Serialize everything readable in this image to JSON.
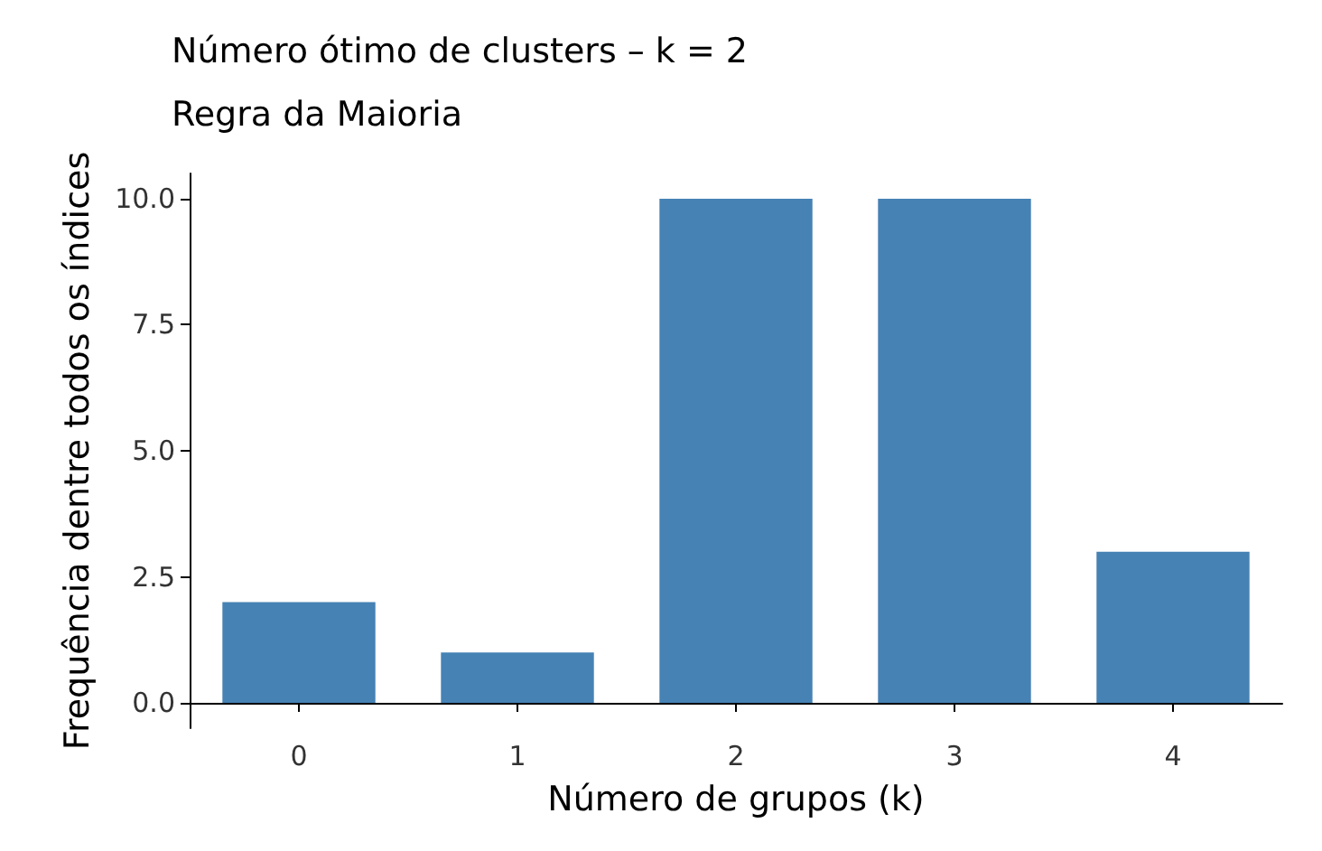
{
  "chart_data": {
    "type": "bar",
    "title": "Número ótimo de clusters – k = 2",
    "subtitle": "Regra da Maioria",
    "xlabel": "Número de grupos (k)",
    "ylabel": "Frequência dentre todos os índices",
    "categories": [
      "0",
      "1",
      "2",
      "3",
      "4"
    ],
    "values": [
      2,
      1,
      10,
      10,
      3
    ],
    "color": "#4682b4",
    "ylim": [
      -0.5,
      10.5
    ],
    "yticks": [
      {
        "value": 0,
        "label": "0.0"
      },
      {
        "value": 2.5,
        "label": "2.5"
      },
      {
        "value": 5,
        "label": "5.0"
      },
      {
        "value": 7.5,
        "label": "7.5"
      },
      {
        "value": 10,
        "label": "10.0"
      }
    ],
    "grid": false
  }
}
